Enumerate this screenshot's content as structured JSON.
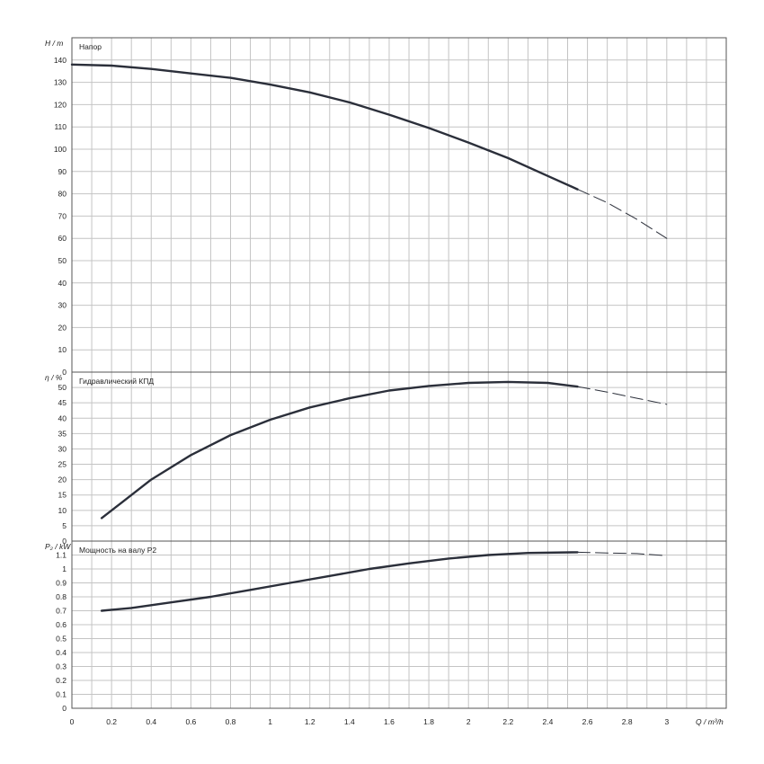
{
  "chart_data": [
    {
      "type": "line",
      "title": "Напор",
      "ylabel": "H / m",
      "xlim": [
        0,
        3.3
      ],
      "ylim": [
        0,
        150
      ],
      "yticks": [
        0,
        10,
        20,
        30,
        40,
        50,
        60,
        70,
        80,
        90,
        100,
        110,
        120,
        130,
        140
      ],
      "grid": true,
      "series": [
        {
          "style": "solid",
          "x": [
            0,
            0.2,
            0.4,
            0.6,
            0.8,
            1.0,
            1.2,
            1.4,
            1.6,
            1.8,
            2.0,
            2.2,
            2.4,
            2.55
          ],
          "y": [
            138,
            137.5,
            136,
            134,
            132,
            129,
            125.5,
            121,
            115.5,
            109.5,
            103,
            96,
            88,
            82
          ]
        },
        {
          "style": "dashed",
          "x": [
            2.55,
            2.7,
            2.85,
            3.0
          ],
          "y": [
            82,
            76,
            68.5,
            60
          ]
        }
      ]
    },
    {
      "type": "line",
      "title": "Гидравлический КПД",
      "ylabel": "η / %",
      "xlim": [
        0,
        3.3
      ],
      "ylim": [
        0,
        55
      ],
      "yticks": [
        0,
        5,
        10,
        15,
        20,
        25,
        30,
        35,
        40,
        45,
        50
      ],
      "grid": true,
      "series": [
        {
          "style": "solid",
          "x": [
            0.15,
            0.25,
            0.4,
            0.6,
            0.8,
            1.0,
            1.2,
            1.4,
            1.6,
            1.8,
            2.0,
            2.2,
            2.4,
            2.55
          ],
          "y": [
            7.5,
            12.5,
            20,
            28,
            34.5,
            39.5,
            43.5,
            46.5,
            49,
            50.5,
            51.5,
            51.8,
            51.5,
            50.3
          ]
        },
        {
          "style": "dashed",
          "x": [
            2.55,
            2.7,
            2.85,
            3.0
          ],
          "y": [
            50.3,
            48.5,
            46.5,
            44.5
          ]
        }
      ]
    },
    {
      "type": "line",
      "title": "Мощность на валу P2",
      "ylabel": "P₂ / kW",
      "xlabel": "Q / m³/h",
      "xlim": [
        0,
        3.3
      ],
      "ylim": [
        0,
        1.2
      ],
      "yticks": [
        "0",
        "0.1",
        "0.2",
        "0.3",
        "0.4",
        "0.5",
        "0.6",
        "0.7",
        "0.8",
        "0.9",
        "1",
        "1.1"
      ],
      "xticks": [
        "0",
        "0.2",
        "0.4",
        "0.6",
        "0.8",
        "1",
        "1.2",
        "1.4",
        "1.6",
        "1.8",
        "2",
        "2.2",
        "2.4",
        "2.6",
        "2.8",
        "3"
      ],
      "grid": true,
      "series": [
        {
          "style": "solid",
          "x": [
            0.15,
            0.3,
            0.5,
            0.7,
            0.9,
            1.1,
            1.3,
            1.5,
            1.7,
            1.9,
            2.1,
            2.3,
            2.55
          ],
          "y": [
            0.7,
            0.72,
            0.76,
            0.8,
            0.85,
            0.9,
            0.95,
            1.0,
            1.04,
            1.075,
            1.1,
            1.115,
            1.12
          ]
        },
        {
          "style": "dashed",
          "x": [
            2.55,
            2.7,
            2.85,
            3.0
          ],
          "y": [
            1.12,
            1.115,
            1.11,
            1.095
          ]
        }
      ]
    }
  ]
}
